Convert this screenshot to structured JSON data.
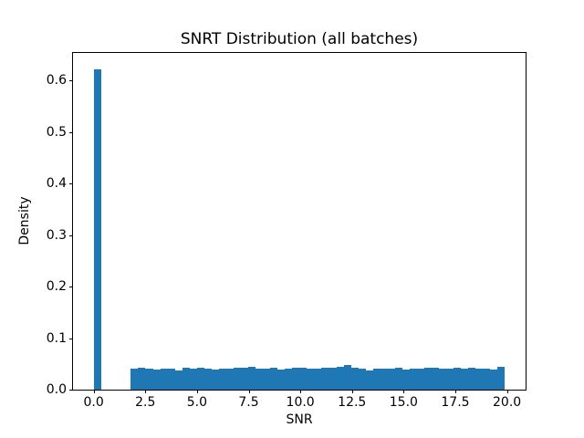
{
  "chart_data": {
    "type": "bar",
    "subtype": "histogram",
    "title": "SNRT Distribution (all batches)",
    "xlabel": "SNR",
    "ylabel": "Density",
    "xlim": [
      -1.0,
      20.9
    ],
    "ylim": [
      0,
      0.654
    ],
    "xtick_values": [
      0.0,
      2.5,
      5.0,
      7.5,
      10.0,
      12.5,
      15.0,
      17.5,
      20.0
    ],
    "xtick_labels": [
      "0.0",
      "2.5",
      "5.0",
      "7.5",
      "10.0",
      "12.5",
      "15.0",
      "17.5",
      "20.0"
    ],
    "ytick_values": [
      0.0,
      0.1,
      0.2,
      0.3,
      0.4,
      0.5,
      0.6
    ],
    "ytick_labels": [
      "0.0",
      "0.1",
      "0.2",
      "0.3",
      "0.4",
      "0.5",
      "0.6"
    ],
    "grid": false,
    "legend": false,
    "bar_color": "#1f77b4",
    "bin_width": 0.355,
    "bin_starts": [
      0.0,
      1.8,
      2.155,
      2.51,
      2.865,
      3.22,
      3.575,
      3.93,
      4.285,
      4.64,
      4.995,
      5.35,
      5.705,
      6.06,
      6.415,
      6.77,
      7.125,
      7.48,
      7.835,
      8.19,
      8.545,
      8.9,
      9.255,
      9.61,
      9.965,
      10.32,
      10.675,
      11.03,
      11.385,
      11.74,
      12.095,
      12.45,
      12.805,
      13.16,
      13.515,
      13.87,
      14.225,
      14.58,
      14.935,
      15.29,
      15.645,
      16.0,
      16.355,
      16.71,
      17.065,
      17.42,
      17.775,
      18.13,
      18.485,
      18.84,
      19.195,
      19.55
    ],
    "heights": [
      0.622,
      0.041,
      0.042,
      0.04,
      0.039,
      0.041,
      0.04,
      0.038,
      0.042,
      0.041,
      0.043,
      0.04,
      0.039,
      0.041,
      0.04,
      0.042,
      0.043,
      0.044,
      0.041,
      0.04,
      0.042,
      0.039,
      0.041,
      0.043,
      0.042,
      0.04,
      0.041,
      0.043,
      0.042,
      0.044,
      0.047,
      0.043,
      0.04,
      0.038,
      0.04,
      0.041,
      0.04,
      0.042,
      0.039,
      0.041,
      0.04,
      0.042,
      0.043,
      0.041,
      0.04,
      0.042,
      0.041,
      0.043,
      0.04,
      0.041,
      0.039,
      0.045
    ]
  }
}
